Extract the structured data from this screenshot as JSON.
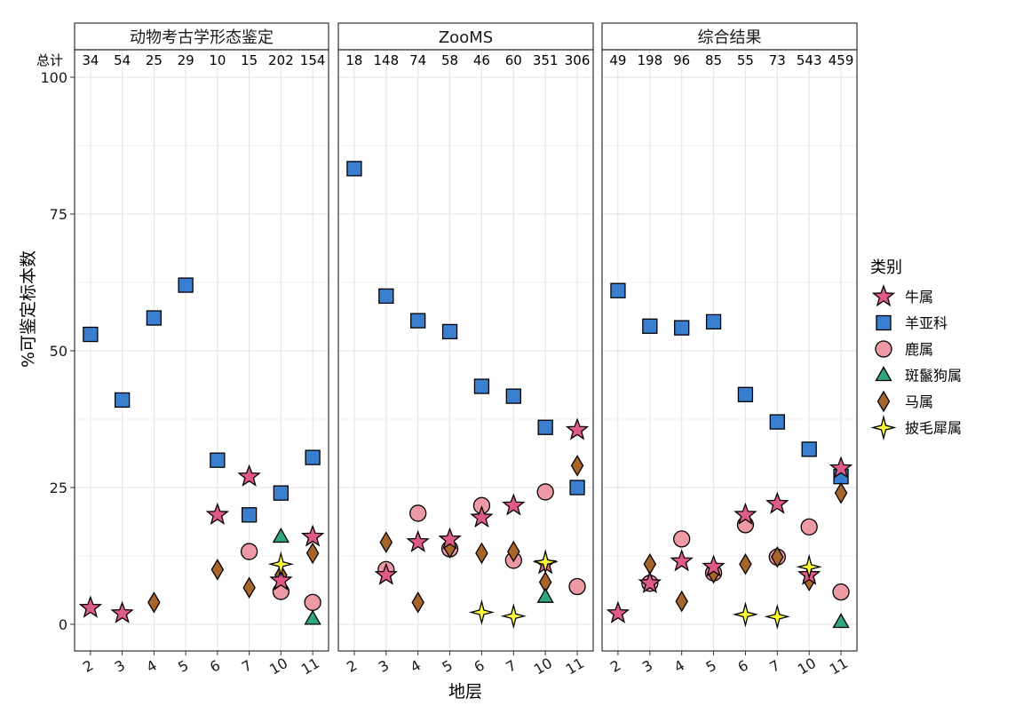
{
  "chart_data": {
    "type": "scatter",
    "ylabel": "%可鉴定标本数",
    "xlabel": "地层",
    "total_label": "总计",
    "ylim": [
      -5,
      100
    ],
    "yticks": [
      0,
      25,
      50,
      75,
      100
    ],
    "categories": [
      "2",
      "3",
      "4",
      "5",
      "6",
      "7",
      "10",
      "11"
    ],
    "grid": true,
    "legend": {
      "title": "类别",
      "position": "right",
      "entries": [
        {
          "name": "牛属",
          "shape": "star",
          "color": "#E05A86"
        },
        {
          "name": "羊亚科",
          "shape": "square",
          "color": "#3A7FCF"
        },
        {
          "name": "鹿属",
          "shape": "circle",
          "color": "#EE9AA4"
        },
        {
          "name": "斑鬣狗属",
          "shape": "triangle",
          "color": "#2FA67E"
        },
        {
          "name": "马属",
          "shape": "diamond",
          "color": "#A8652A"
        },
        {
          "name": "披毛犀属",
          "shape": "star4",
          "color": "#FFFF33"
        }
      ]
    },
    "panels": [
      {
        "title": "动物考古学形态鉴定",
        "totals": [
          "34",
          "54",
          "25",
          "29",
          "10",
          "15",
          "202",
          "154"
        ],
        "series": [
          {
            "name": "羊亚科",
            "values": [
              53,
              41,
              56,
              62,
              30,
              20,
              24,
              30.5
            ]
          },
          {
            "name": "牛属",
            "values": [
              3,
              2,
              null,
              null,
              20,
              27,
              8,
              16
            ]
          },
          {
            "name": "鹿属",
            "values": [
              null,
              null,
              null,
              null,
              null,
              13.3,
              6,
              4
            ]
          },
          {
            "name": "斑鬣狗属",
            "values": [
              null,
              null,
              null,
              null,
              null,
              null,
              16,
              1
            ]
          },
          {
            "name": "马属",
            "values": [
              null,
              null,
              4,
              null,
              10,
              6.7,
              9,
              13
            ]
          },
          {
            "name": "披毛犀属",
            "values": [
              null,
              null,
              null,
              null,
              null,
              null,
              11,
              null
            ]
          }
        ]
      },
      {
        "title": "ZooMS",
        "totals": [
          "18",
          "148",
          "74",
          "58",
          "46",
          "60",
          "351",
          "306"
        ],
        "series": [
          {
            "name": "羊亚科",
            "values": [
              83.3,
              60,
              55.5,
              53.5,
              43.5,
              41.7,
              36,
              25
            ]
          },
          {
            "name": "牛属",
            "values": [
              null,
              9,
              15,
              15.5,
              19.5,
              21.7,
              11,
              35.5
            ]
          },
          {
            "name": "鹿属",
            "values": [
              null,
              10,
              20.3,
              13.8,
              21.7,
              11.7,
              24.2,
              6.9
            ]
          },
          {
            "name": "斑鬣狗属",
            "values": [
              null,
              null,
              null,
              null,
              null,
              null,
              5,
              null
            ]
          },
          {
            "name": "马属",
            "values": [
              null,
              15,
              4,
              14,
              13,
              13.3,
              7.7,
              29
            ]
          },
          {
            "name": "披毛犀属",
            "values": [
              null,
              null,
              null,
              null,
              2.2,
              1.5,
              11.4,
              null
            ]
          }
        ]
      },
      {
        "title": "综合结果",
        "totals": [
          "49",
          "198",
          "96",
          "85",
          "55",
          "73",
          "543",
          "459"
        ],
        "series": [
          {
            "name": "羊亚科",
            "values": [
              61,
              54.5,
              54.2,
              55.3,
              42,
              37,
              32,
              27
            ]
          },
          {
            "name": "牛属",
            "values": [
              2,
              7.5,
              11.5,
              10.5,
              20,
              22,
              9,
              28.5
            ]
          },
          {
            "name": "鹿属",
            "values": [
              null,
              7.5,
              15.6,
              9.4,
              18.2,
              12.3,
              17.8,
              5.9
            ]
          },
          {
            "name": "斑鬣狗属",
            "values": [
              null,
              null,
              null,
              null,
              null,
              null,
              null,
              0.4
            ]
          },
          {
            "name": "马属",
            "values": [
              null,
              11,
              4.2,
              9.4,
              11,
              12.3,
              8,
              24
            ]
          },
          {
            "name": "披毛犀属",
            "values": [
              null,
              null,
              null,
              null,
              1.8,
              1.4,
              10.5,
              null
            ]
          }
        ]
      }
    ]
  }
}
